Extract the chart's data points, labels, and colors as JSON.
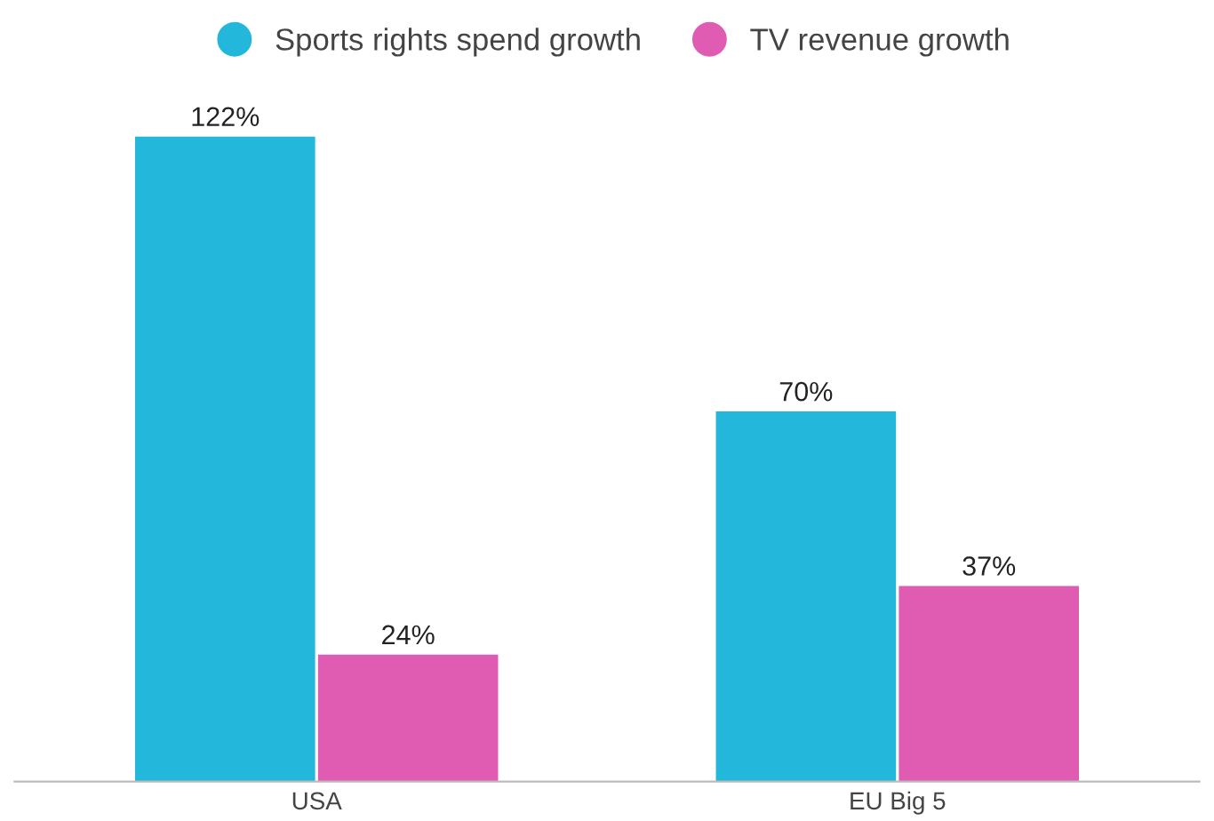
{
  "chart_data": {
    "type": "bar",
    "categories": [
      "USA",
      "EU Big 5"
    ],
    "series": [
      {
        "name": "Sports rights spend growth",
        "color": "#22b7db",
        "values": [
          122,
          70
        ],
        "value_labels": [
          "122%",
          "70%"
        ]
      },
      {
        "name": "TV revenue growth",
        "color": "#e05bb2",
        "values": [
          24,
          37
        ],
        "value_labels": [
          "24%",
          "37%"
        ]
      }
    ],
    "legend": "top",
    "grid": false
  }
}
